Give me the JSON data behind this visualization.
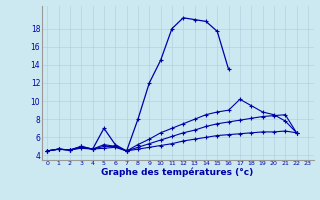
{
  "title": "Graphe des températures (°c)",
  "background_color": "#cce8f0",
  "line_color": "#0000aa",
  "x_ticks": [
    0,
    1,
    2,
    3,
    4,
    5,
    6,
    7,
    8,
    9,
    10,
    11,
    12,
    13,
    14,
    15,
    16,
    17,
    18,
    19,
    20,
    21,
    22,
    23
  ],
  "ylim": [
    3.5,
    20.5
  ],
  "yticks": [
    4,
    6,
    8,
    10,
    12,
    14,
    16,
    18
  ],
  "series": {
    "main": [
      4.5,
      4.7,
      4.6,
      5.0,
      4.7,
      7.0,
      5.2,
      4.5,
      8.0,
      12.0,
      14.5,
      18.0,
      19.2,
      19.0,
      18.8,
      17.7,
      13.5,
      null,
      null,
      null,
      null,
      null,
      null,
      null
    ],
    "line2": [
      4.5,
      4.7,
      4.6,
      5.0,
      4.7,
      5.2,
      5.0,
      4.5,
      5.2,
      5.8,
      6.5,
      7.0,
      7.5,
      8.0,
      8.5,
      8.8,
      9.0,
      10.2,
      9.5,
      8.8,
      8.5,
      7.8,
      6.5,
      null
    ],
    "line3": [
      4.5,
      4.7,
      4.6,
      4.9,
      4.7,
      5.0,
      5.0,
      4.5,
      4.9,
      5.3,
      5.7,
      6.1,
      6.5,
      6.8,
      7.2,
      7.5,
      7.7,
      7.9,
      8.1,
      8.3,
      8.4,
      8.5,
      6.5,
      null
    ],
    "line4": [
      4.5,
      4.7,
      4.6,
      4.8,
      4.7,
      4.8,
      4.9,
      4.5,
      4.7,
      4.9,
      5.1,
      5.3,
      5.6,
      5.8,
      6.0,
      6.2,
      6.3,
      6.4,
      6.5,
      6.6,
      6.6,
      6.7,
      6.5,
      null
    ]
  }
}
